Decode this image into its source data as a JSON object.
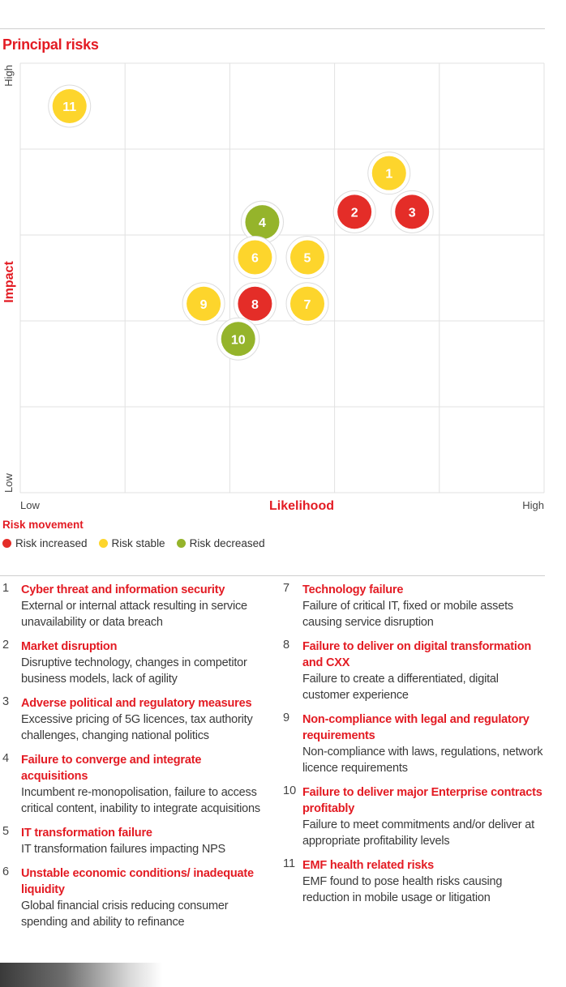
{
  "title": "Principal risks",
  "chart_data": {
    "type": "scatter",
    "title": "Principal risks",
    "xlabel": "Likelihood",
    "ylabel": "Impact",
    "x_tick_low": "Low",
    "x_tick_high": "High",
    "y_tick_low": "Low",
    "y_tick_high": "High",
    "xlim": [
      0,
      5
    ],
    "ylim": [
      0,
      5
    ],
    "grid": true,
    "points": [
      {
        "label": "11",
        "x": 0.47,
        "y": 4.5,
        "status": "stable"
      },
      {
        "label": "1",
        "x": 3.52,
        "y": 3.72,
        "status": "stable"
      },
      {
        "label": "2",
        "x": 3.19,
        "y": 3.27,
        "status": "increased"
      },
      {
        "label": "3",
        "x": 3.74,
        "y": 3.27,
        "status": "increased"
      },
      {
        "label": "4",
        "x": 2.31,
        "y": 3.15,
        "status": "decreased"
      },
      {
        "label": "6",
        "x": 2.24,
        "y": 2.74,
        "status": "stable"
      },
      {
        "label": "5",
        "x": 2.74,
        "y": 2.74,
        "status": "stable"
      },
      {
        "label": "9",
        "x": 1.75,
        "y": 2.2,
        "status": "stable"
      },
      {
        "label": "8",
        "x": 2.24,
        "y": 2.2,
        "status": "increased"
      },
      {
        "label": "7",
        "x": 2.74,
        "y": 2.2,
        "status": "stable"
      },
      {
        "label": "10",
        "x": 2.08,
        "y": 1.79,
        "status": "decreased"
      }
    ]
  },
  "colors": {
    "increased": "#e42d28",
    "stable": "#fdd52c",
    "decreased": "#95b42b",
    "accent": "#e31b23",
    "grid": "#e1e1e1"
  },
  "legend": {
    "title": "Risk movement",
    "items": [
      {
        "key": "increased",
        "label": "Risk increased"
      },
      {
        "key": "stable",
        "label": "Risk stable"
      },
      {
        "key": "decreased",
        "label": "Risk decreased"
      }
    ]
  },
  "risks_left": [
    {
      "num": "1",
      "title": "Cyber threat and information security",
      "desc": "External or internal attack resulting in service unavailability or data breach"
    },
    {
      "num": "2",
      "title": "Market disruption",
      "desc": "Disruptive technology, changes in competitor business models, lack of agility"
    },
    {
      "num": "3",
      "title": "Adverse political and regulatory measures",
      "desc": "Excessive pricing of 5G licences, tax authority challenges, changing national politics"
    },
    {
      "num": "4",
      "title": "Failure to converge and integrate acquisitions",
      "desc": "Incumbent re-monopolisation, failure to access critical content, inability to integrate acquisitions"
    },
    {
      "num": "5",
      "title": "IT transformation failure",
      "desc": "IT transformation failures impacting NPS"
    },
    {
      "num": "6",
      "title": "Unstable economic conditions/ inadequate liquidity",
      "desc": "Global financial crisis reducing consumer spending and ability to refinance"
    }
  ],
  "risks_right": [
    {
      "num": "7",
      "title": "Technology failure",
      "desc": "Failure of critical IT, fixed or mobile assets causing service disruption"
    },
    {
      "num": "8",
      "title": "Failure to deliver on digital transformation and CXX",
      "desc": "Failure to create a differentiated, digital customer experience"
    },
    {
      "num": "9",
      "title": "Non-compliance with legal and regulatory requirements",
      "desc": "Non-compliance with laws, regulations, network licence requirements"
    },
    {
      "num": "10",
      "title": "Failure to deliver major Enterprise contracts profitably",
      "desc": "Failure to meet commitments and/or deliver at appropriate profitability levels"
    },
    {
      "num": "11",
      "title": "EMF health related risks",
      "desc": "EMF found to pose health risks causing reduction in mobile usage or litigation"
    }
  ]
}
